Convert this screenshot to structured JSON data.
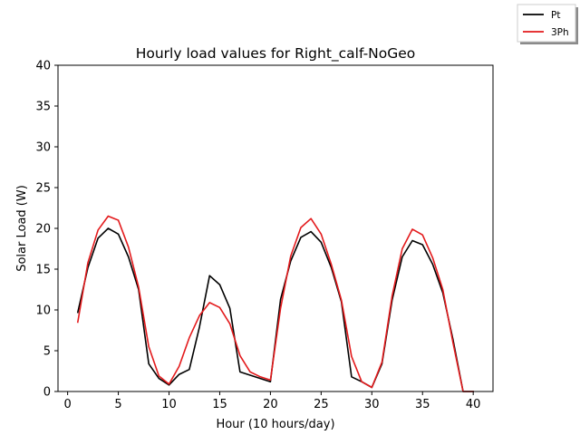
{
  "chart_data": {
    "type": "line",
    "title": "Hourly load values for Right_calf-NoGeo",
    "xlabel": "Hour (10 hours/day)",
    "ylabel": "Solar Load (W)",
    "xlim": [
      -0.95,
      41.95
    ],
    "ylim": [
      0,
      40
    ],
    "xticks": [
      0,
      5,
      10,
      15,
      20,
      25,
      30,
      35,
      40
    ],
    "yticks": [
      0,
      5,
      10,
      15,
      20,
      25,
      30,
      35,
      40
    ],
    "grid": false,
    "legend_position": "top-right",
    "x": [
      1,
      2,
      3,
      4,
      5,
      6,
      7,
      8,
      9,
      10,
      11,
      12,
      13,
      14,
      15,
      16,
      17,
      18,
      19,
      20,
      21,
      22,
      23,
      24,
      25,
      26,
      27,
      28,
      29,
      30,
      31,
      32,
      33,
      34,
      35,
      36,
      37,
      38,
      39,
      40
    ],
    "series": [
      {
        "name": "Pt",
        "color": "#000000",
        "values": [
          9.7,
          15.2,
          18.8,
          20.0,
          19.3,
          16.5,
          12.5,
          3.4,
          1.6,
          0.8,
          2.1,
          2.7,
          7.9,
          14.2,
          13.1,
          10.2,
          2.4,
          2.0,
          1.6,
          1.2,
          11.3,
          16.0,
          18.9,
          19.6,
          18.3,
          15.2,
          11.0,
          1.8,
          1.2,
          0.5,
          3.4,
          11.2,
          16.5,
          18.5,
          18.0,
          15.6,
          12.1,
          6.4,
          0.0,
          0.0
        ]
      },
      {
        "name": "3Ph",
        "color": "#e31a1c",
        "values": [
          8.5,
          15.8,
          19.8,
          21.5,
          21.0,
          17.7,
          12.8,
          5.5,
          1.9,
          0.9,
          3.1,
          6.6,
          9.3,
          10.9,
          10.3,
          8.3,
          4.4,
          2.4,
          1.8,
          1.4,
          10.2,
          16.6,
          20.1,
          21.2,
          19.3,
          15.6,
          11.2,
          4.3,
          1.2,
          0.5,
          3.6,
          11.7,
          17.5,
          19.9,
          19.2,
          16.4,
          12.5,
          6.0,
          0.0,
          0.0
        ]
      }
    ]
  }
}
